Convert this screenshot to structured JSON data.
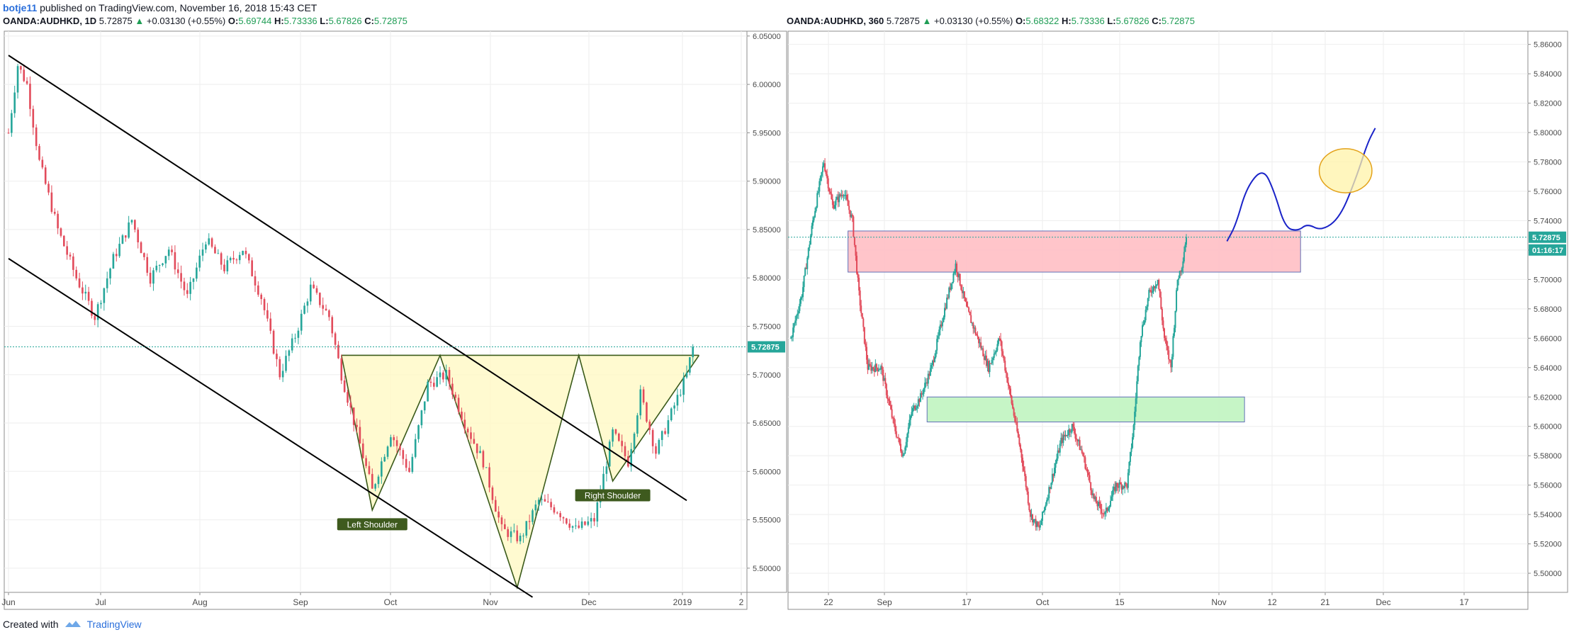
{
  "header": {
    "username": "botje11",
    "published_text": "published on TradingView.com, November 16, 2018 15:43 CET"
  },
  "footer": {
    "created_with": "Created with",
    "brand": "TradingView"
  },
  "charts": [
    {
      "symbol": "OANDA:AUDHKD, 1D",
      "last": "5.72875",
      "change": "+0.03130 (+0.55%)",
      "open": "5.69744",
      "high": "5.73336",
      "low": "5.67826",
      "close": "5.72875",
      "price_tag": "5.72875",
      "pattern_labels": {
        "left_shoulder": "Left Shoulder",
        "right_shoulder": "Right Shoulder"
      }
    },
    {
      "symbol": "OANDA:AUDHKD, 360",
      "last": "5.72875",
      "change": "+0.03130 (+0.55%)",
      "open": "5.68322",
      "high": "5.73336",
      "low": "5.67826",
      "close": "5.72875",
      "price_tag": "5.72875",
      "countdown": "01:16:17"
    }
  ],
  "colors": {
    "up": "#26a69a",
    "down": "#e24b5b",
    "price_line": "#26a69a",
    "pattern_fill": "#fff9c4",
    "pattern_stroke": "#3a5a1a",
    "resistance_fill": "#ffc2c8",
    "support_fill": "#c4f5c4",
    "projection": "#1a23c8",
    "target_fill": "#fff3a8",
    "target_stroke": "#e3a21a"
  },
  "chart_data": [
    {
      "type": "candlestick",
      "timeframe": "1D",
      "x_tick_labels": [
        "Jun",
        "Jul",
        "Aug",
        "Sep",
        "Oct",
        "Nov",
        "Dec",
        "2019",
        "2"
      ],
      "y_tick_labels": [
        "6.05000",
        "6.00000",
        "5.95000",
        "5.90000",
        "5.85000",
        "5.80000",
        "5.75000",
        "5.70000",
        "5.65000",
        "5.60000",
        "5.55000",
        "5.50000"
      ],
      "ylim": [
        5.475,
        6.055
      ],
      "last_price": 5.72875,
      "anchors": [
        {
          "i": 0,
          "p": 5.95
        },
        {
          "i": 3,
          "p": 6.02
        },
        {
          "i": 6,
          "p": 6.0
        },
        {
          "i": 10,
          "p": 5.92
        },
        {
          "i": 16,
          "p": 5.85
        },
        {
          "i": 22,
          "p": 5.8
        },
        {
          "i": 28,
          "p": 5.76
        },
        {
          "i": 34,
          "p": 5.82
        },
        {
          "i": 40,
          "p": 5.86
        },
        {
          "i": 46,
          "p": 5.8
        },
        {
          "i": 52,
          "p": 5.83
        },
        {
          "i": 58,
          "p": 5.78
        },
        {
          "i": 64,
          "p": 5.84
        },
        {
          "i": 70,
          "p": 5.81
        },
        {
          "i": 76,
          "p": 5.83
        },
        {
          "i": 82,
          "p": 5.78
        },
        {
          "i": 88,
          "p": 5.7
        },
        {
          "i": 93,
          "p": 5.74
        },
        {
          "i": 98,
          "p": 5.79
        },
        {
          "i": 104,
          "p": 5.76
        },
        {
          "i": 108,
          "p": 5.7
        },
        {
          "i": 113,
          "p": 5.64
        },
        {
          "i": 118,
          "p": 5.58
        },
        {
          "i": 124,
          "p": 5.64
        },
        {
          "i": 130,
          "p": 5.6
        },
        {
          "i": 136,
          "p": 5.69
        },
        {
          "i": 142,
          "p": 5.7
        },
        {
          "i": 148,
          "p": 5.65
        },
        {
          "i": 154,
          "p": 5.61
        },
        {
          "i": 160,
          "p": 5.54
        },
        {
          "i": 166,
          "p": 5.53
        },
        {
          "i": 172,
          "p": 5.57
        },
        {
          "i": 178,
          "p": 5.56
        },
        {
          "i": 184,
          "p": 5.54
        },
        {
          "i": 190,
          "p": 5.55
        },
        {
          "i": 196,
          "p": 5.64
        },
        {
          "i": 201,
          "p": 5.61
        },
        {
          "i": 205,
          "p": 5.68
        },
        {
          "i": 210,
          "p": 5.62
        },
        {
          "i": 215,
          "p": 5.66
        },
        {
          "i": 220,
          "p": 5.7
        },
        {
          "i": 222,
          "p": 5.73
        }
      ],
      "lines": [
        {
          "name": "channel-upper",
          "i1": 0,
          "p1": 6.03,
          "i2": 220,
          "p2": 5.57
        },
        {
          "name": "channel-lower",
          "i1": 0,
          "p1": 5.82,
          "i2": 170,
          "p2": 5.47
        }
      ],
      "pattern": {
        "neckline": 5.72,
        "points": [
          {
            "i": 108,
            "p": 5.72
          },
          {
            "i": 118,
            "p": 5.56
          },
          {
            "i": 140,
            "p": 5.72
          },
          {
            "i": 165,
            "p": 5.48
          },
          {
            "i": 185,
            "p": 5.72
          },
          {
            "i": 196,
            "p": 5.59
          },
          {
            "i": 224,
            "p": 5.72
          }
        ]
      },
      "labels": [
        {
          "text": "Left Shoulder",
          "i": 118,
          "p": 5.545
        },
        {
          "text": "Right Shoulder",
          "i": 196,
          "p": 5.575
        }
      ]
    },
    {
      "type": "candlestick",
      "timeframe": "360",
      "x_tick_labels": [
        "22",
        "Sep",
        "17",
        "Oct",
        "15",
        "Nov",
        "12",
        "21",
        "Dec",
        "17"
      ],
      "y_tick_labels": [
        "5.86000",
        "5.84000",
        "5.82000",
        "5.80000",
        "5.78000",
        "5.76000",
        "5.74000",
        "5.72000",
        "5.70000",
        "5.68000",
        "5.66000",
        "5.64000",
        "5.62000",
        "5.60000",
        "5.58000",
        "5.56000",
        "5.54000",
        "5.52000",
        "5.50000"
      ],
      "ylim": [
        5.487,
        5.869
      ],
      "last_price": 5.72875,
      "anchors": [
        {
          "i": 0,
          "p": 5.66
        },
        {
          "i": 10,
          "p": 5.69
        },
        {
          "i": 20,
          "p": 5.74
        },
        {
          "i": 30,
          "p": 5.78
        },
        {
          "i": 38,
          "p": 5.75
        },
        {
          "i": 48,
          "p": 5.76
        },
        {
          "i": 56,
          "p": 5.74
        },
        {
          "i": 62,
          "p": 5.69
        },
        {
          "i": 70,
          "p": 5.64
        },
        {
          "i": 82,
          "p": 5.64
        },
        {
          "i": 94,
          "p": 5.6
        },
        {
          "i": 102,
          "p": 5.58
        },
        {
          "i": 110,
          "p": 5.61
        },
        {
          "i": 118,
          "p": 5.62
        },
        {
          "i": 128,
          "p": 5.64
        },
        {
          "i": 140,
          "p": 5.68
        },
        {
          "i": 150,
          "p": 5.71
        },
        {
          "i": 160,
          "p": 5.68
        },
        {
          "i": 170,
          "p": 5.66
        },
        {
          "i": 180,
          "p": 5.64
        },
        {
          "i": 190,
          "p": 5.66
        },
        {
          "i": 200,
          "p": 5.62
        },
        {
          "i": 210,
          "p": 5.58
        },
        {
          "i": 218,
          "p": 5.54
        },
        {
          "i": 226,
          "p": 5.53
        },
        {
          "i": 236,
          "p": 5.56
        },
        {
          "i": 246,
          "p": 5.59
        },
        {
          "i": 256,
          "p": 5.6
        },
        {
          "i": 266,
          "p": 5.58
        },
        {
          "i": 276,
          "p": 5.55
        },
        {
          "i": 286,
          "p": 5.54
        },
        {
          "i": 296,
          "p": 5.56
        },
        {
          "i": 306,
          "p": 5.56
        },
        {
          "i": 312,
          "p": 5.6
        },
        {
          "i": 318,
          "p": 5.66
        },
        {
          "i": 326,
          "p": 5.69
        },
        {
          "i": 334,
          "p": 5.7
        },
        {
          "i": 340,
          "p": 5.66
        },
        {
          "i": 346,
          "p": 5.64
        },
        {
          "i": 352,
          "p": 5.7
        },
        {
          "i": 356,
          "p": 5.71
        },
        {
          "i": 360,
          "p": 5.73
        }
      ],
      "zones": [
        {
          "name": "resistance",
          "i1": 52,
          "i2": 464,
          "p1": 5.705,
          "p2": 5.733
        },
        {
          "name": "support",
          "i1": 124,
          "i2": 413,
          "p1": 5.603,
          "p2": 5.62
        }
      ],
      "projection": [
        {
          "i": 397,
          "p": 5.726
        },
        {
          "i": 405,
          "p": 5.737
        },
        {
          "i": 415,
          "p": 5.763
        },
        {
          "i": 430,
          "p": 5.776
        },
        {
          "i": 440,
          "p": 5.76
        },
        {
          "i": 450,
          "p": 5.735
        },
        {
          "i": 462,
          "p": 5.733
        },
        {
          "i": 470,
          "p": 5.738
        },
        {
          "i": 483,
          "p": 5.733
        },
        {
          "i": 500,
          "p": 5.742
        },
        {
          "i": 515,
          "p": 5.77
        },
        {
          "i": 525,
          "p": 5.793
        },
        {
          "i": 532,
          "p": 5.803
        }
      ],
      "target_ellipse": {
        "i": 505,
        "p": 5.774,
        "ri": 24,
        "rp": 0.015
      }
    }
  ]
}
